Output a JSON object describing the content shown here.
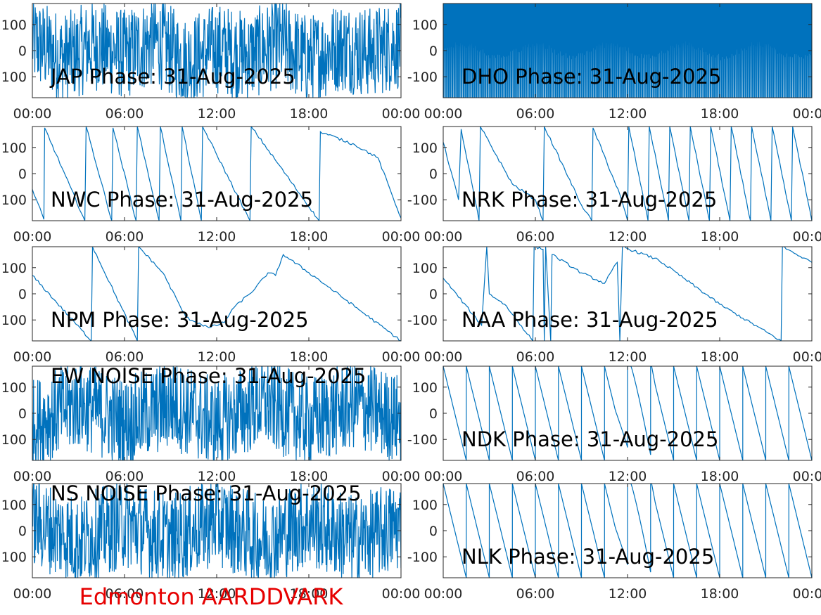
{
  "footer": "Edmonton AARDDVARK",
  "colors": {
    "trace": "#0072bd",
    "axis": "#262626",
    "footer": "#e60000"
  },
  "chart_data": [
    {
      "type": "line",
      "title": "JAP Phase: 31-Aug-2025",
      "x_type": "time",
      "x_ticks": [
        "00:00",
        "06:00",
        "12:00",
        "18:00",
        "00:00"
      ],
      "y_ticks": [
        "100",
        "0",
        "-100"
      ],
      "ylim": [
        -180,
        180
      ],
      "y_tick_labels_shown": [
        "100",
        "0",
        "100"
      ],
      "series": [
        {
          "pattern": "noise",
          "points": [
            [
              "00:00",
              150
            ],
            [
              "02:00",
              -120
            ],
            [
              "04:00",
              90
            ],
            [
              "06:00",
              -60
            ],
            [
              "08:00",
              160
            ],
            [
              "10:00",
              -170
            ],
            [
              "12:00",
              40
            ],
            [
              "14:00",
              -90
            ],
            [
              "16:00",
              120
            ],
            [
              "18:00",
              -150
            ],
            [
              "20:00",
              70
            ],
            [
              "22:00",
              -30
            ],
            [
              "24:00",
              110
            ]
          ]
        }
      ]
    },
    {
      "type": "line",
      "title": "DHO Phase: 31-Aug-2025",
      "x_type": "time",
      "x_ticks": [
        "00:00",
        "06:00",
        "12:00",
        "18:00",
        "00:00"
      ],
      "y_ticks": [
        "100",
        "0",
        "-100"
      ],
      "ylim": [
        -180,
        180
      ],
      "y_tick_labels_shown": [
        "100",
        "0",
        "-100"
      ],
      "series": [
        {
          "pattern": "dense",
          "points": [
            [
              "00:00",
              20
            ],
            [
              "06:00",
              -20
            ],
            [
              "12:00",
              20
            ],
            [
              "18:00",
              -20
            ],
            [
              "24:00",
              10
            ]
          ]
        }
      ]
    },
    {
      "type": "line",
      "title": "NWC Phase: 31-Aug-2025",
      "x_type": "time",
      "x_ticks": [
        "00:00",
        "06:00",
        "12:00",
        "18:00",
        "00:00"
      ],
      "y_ticks": [
        "100",
        "0",
        "-100"
      ],
      "ylim": [
        -180,
        180
      ],
      "y_tick_labels_shown": [
        "100",
        "0",
        "100"
      ],
      "series": [
        {
          "pattern": "wrap",
          "points": [
            [
              "00:00",
              -60
            ],
            [
              "00:45",
              -175
            ],
            [
              "00:48",
              175
            ],
            [
              "03:25",
              -180
            ],
            [
              "03:30",
              180
            ],
            [
              "05:10",
              -180
            ],
            [
              "05:15",
              175
            ],
            [
              "06:45",
              -180
            ],
            [
              "06:50",
              180
            ],
            [
              "08:15",
              -180
            ],
            [
              "08:20",
              180
            ],
            [
              "09:40",
              -180
            ],
            [
              "09:45",
              180
            ],
            [
              "11:00",
              -180
            ],
            [
              "11:05",
              180
            ],
            [
              "14:10",
              -180
            ],
            [
              "14:15",
              180
            ],
            [
              "18:40",
              -180
            ],
            [
              "18:45",
              160
            ],
            [
              "21:00",
              110
            ],
            [
              "22:30",
              60
            ],
            [
              "24:00",
              -170
            ]
          ]
        }
      ]
    },
    {
      "type": "line",
      "title": "NRK Phase: 31-Aug-2025",
      "x_type": "time",
      "x_ticks": [
        "00:00",
        "06:00",
        "12:00",
        "18:00",
        "00:00"
      ],
      "y_ticks": [
        "100",
        "0",
        "-100"
      ],
      "ylim": [
        -180,
        180
      ],
      "y_tick_labels_shown": [
        "100",
        "0",
        "-100"
      ],
      "series": [
        {
          "pattern": "wrap",
          "points": [
            [
              "00:00",
              120
            ],
            [
              "01:00",
              -100
            ],
            [
              "01:10",
              170
            ],
            [
              "02:20",
              -180
            ],
            [
              "02:25",
              180
            ],
            [
              "04:30",
              -40
            ],
            [
              "06:00",
              -100
            ],
            [
              "06:30",
              -180
            ],
            [
              "06:35",
              180
            ],
            [
              "09:00",
              -120
            ],
            [
              "09:40",
              -180
            ],
            [
              "09:45",
              175
            ],
            [
              "11:30",
              -80
            ],
            [
              "12:00",
              -180
            ],
            [
              "12:05",
              180
            ],
            [
              "13:20",
              -180
            ],
            [
              "13:25",
              180
            ],
            [
              "14:40",
              -180
            ],
            [
              "14:45",
              180
            ],
            [
              "16:00",
              -180
            ],
            [
              "16:05",
              180
            ],
            [
              "17:20",
              -180
            ],
            [
              "17:25",
              180
            ],
            [
              "18:40",
              -180
            ],
            [
              "18:45",
              180
            ],
            [
              "20:00",
              -180
            ],
            [
              "20:05",
              180
            ],
            [
              "21:20",
              -180
            ],
            [
              "21:25",
              180
            ],
            [
              "22:40",
              -180
            ],
            [
              "22:45",
              180
            ],
            [
              "24:00",
              -180
            ]
          ]
        }
      ]
    },
    {
      "type": "line",
      "title": "NPM Phase: 31-Aug-2025",
      "x_type": "time",
      "x_ticks": [
        "00:00",
        "06:00",
        "12:00",
        "18:00",
        "00:00"
      ],
      "y_ticks": [
        "100",
        "0",
        "-100"
      ],
      "ylim": [
        -180,
        180
      ],
      "y_tick_labels_shown": [
        "100",
        "0",
        "100"
      ],
      "series": [
        {
          "pattern": "wrap",
          "points": [
            [
              "00:00",
              70
            ],
            [
              "03:50",
              -180
            ],
            [
              "03:55",
              180
            ],
            [
              "06:50",
              -180
            ],
            [
              "06:55",
              180
            ],
            [
              "08:30",
              80
            ],
            [
              "10:00",
              -90
            ],
            [
              "11:30",
              -130
            ],
            [
              "12:30",
              -110
            ],
            [
              "13:00",
              -60
            ],
            [
              "14:30",
              20
            ],
            [
              "15:20",
              80
            ],
            [
              "15:50",
              70
            ],
            [
              "16:20",
              150
            ],
            [
              "18:30",
              60
            ],
            [
              "24:00",
              -180
            ]
          ]
        }
      ]
    },
    {
      "type": "line",
      "title": "NAA Phase: 31-Aug-2025",
      "x_type": "time",
      "x_ticks": [
        "00:00",
        "06:00",
        "12:00",
        "18:00",
        "00:00"
      ],
      "y_ticks": [
        "100",
        "0",
        "-100"
      ],
      "ylim": [
        -180,
        180
      ],
      "y_tick_labels_shown": [
        "100",
        "0",
        "-100"
      ],
      "series": [
        {
          "pattern": "wrap",
          "points": [
            [
              "00:00",
              60
            ],
            [
              "02:30",
              -120
            ],
            [
              "02:50",
              180
            ],
            [
              "03:00",
              0
            ],
            [
              "04:00",
              -40
            ],
            [
              "05:50",
              -180
            ],
            [
              "05:55",
              180
            ],
            [
              "06:30",
              170
            ],
            [
              "06:35",
              -180
            ],
            [
              "06:40",
              180
            ],
            [
              "07:00",
              -180
            ],
            [
              "07:05",
              150
            ],
            [
              "09:00",
              80
            ],
            [
              "10:30",
              40
            ],
            [
              "11:20",
              120
            ],
            [
              "11:30",
              -180
            ],
            [
              "11:40",
              180
            ],
            [
              "14:00",
              130
            ],
            [
              "18:00",
              -40
            ],
            [
              "22:00",
              -180
            ],
            [
              "22:05",
              180
            ],
            [
              "24:00",
              120
            ]
          ]
        }
      ]
    },
    {
      "type": "line",
      "title": "EW NOISE Phase: 31-Aug-2025",
      "x_type": "time",
      "x_ticks": [
        "00:00",
        "06:00",
        "12:00",
        "18:00",
        "00:00"
      ],
      "y_ticks": [
        "100",
        "0",
        "-100"
      ],
      "ylim": [
        -180,
        180
      ],
      "y_tick_labels_shown": [
        "100",
        "0",
        "100"
      ],
      "series": [
        {
          "pattern": "noise",
          "points": [
            [
              "00:00",
              -170
            ],
            [
              "03:00",
              160
            ],
            [
              "06:00",
              -150
            ],
            [
              "09:00",
              140
            ],
            [
              "12:00",
              -160
            ],
            [
              "15:00",
              170
            ],
            [
              "18:00",
              -140
            ],
            [
              "21:00",
              150
            ],
            [
              "24:00",
              -100
            ]
          ]
        }
      ]
    },
    {
      "type": "line",
      "title": "NDK Phase: 31-Aug-2025",
      "x_type": "time",
      "x_ticks": [
        "00:00",
        "06:00",
        "12:00",
        "18:00",
        "00:00"
      ],
      "y_ticks": [
        "100",
        "0",
        "-100"
      ],
      "ylim": [
        -180,
        180
      ],
      "y_tick_labels_shown": [
        "100",
        "0",
        "-100"
      ],
      "series": [
        {
          "pattern": "sawtooth",
          "period_hours": 1.5,
          "points": [
            [
              "00:00",
              180
            ],
            [
              "11:30",
              -60
            ],
            [
              "11:45",
              20
            ],
            [
              "12:00",
              -60
            ],
            [
              "24:00",
              -180
            ]
          ]
        }
      ]
    },
    {
      "type": "line",
      "title": "NS NOISE Phase: 31-Aug-2025",
      "x_type": "time",
      "x_ticks": [
        "00:00",
        "06:00",
        "12:00",
        "18:00",
        "00:00"
      ],
      "y_ticks": [
        "100",
        "0",
        "-100"
      ],
      "ylim": [
        -180,
        180
      ],
      "y_tick_labels_shown": [
        "100",
        "0",
        "100"
      ],
      "series": [
        {
          "pattern": "noise",
          "points": [
            [
              "00:00",
              150
            ],
            [
              "03:00",
              -160
            ],
            [
              "06:00",
              120
            ],
            [
              "09:00",
              -140
            ],
            [
              "12:00",
              160
            ],
            [
              "15:00",
              -170
            ],
            [
              "18:00",
              130
            ],
            [
              "21:00",
              -150
            ],
            [
              "24:00",
              80
            ]
          ]
        }
      ]
    },
    {
      "type": "line",
      "title": "NLK Phase: 31-Aug-2025",
      "x_type": "time",
      "x_ticks": [
        "00:00",
        "06:00",
        "12:00",
        "18:00",
        "00:00"
      ],
      "y_ticks": [
        "100",
        "0",
        "-100"
      ],
      "ylim": [
        -180,
        180
      ],
      "y_tick_labels_shown": [
        "100",
        "0",
        "-100"
      ],
      "series": [
        {
          "pattern": "sawtooth",
          "period_hours": 1.5,
          "points": [
            [
              "00:00",
              180
            ],
            [
              "12:00",
              -20
            ],
            [
              "12:40",
              20
            ],
            [
              "13:30",
              -80
            ],
            [
              "24:00",
              -180
            ]
          ]
        }
      ]
    }
  ]
}
